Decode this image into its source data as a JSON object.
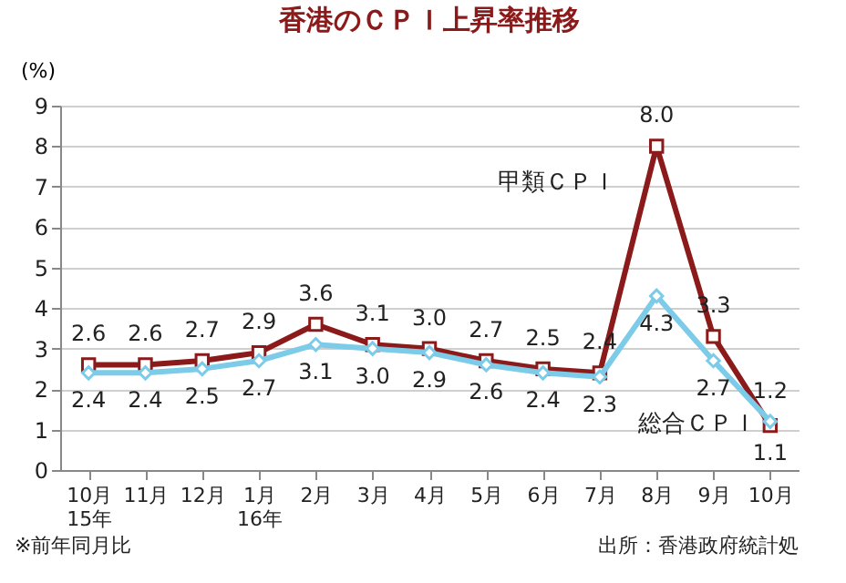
{
  "chart_data": {
    "type": "line",
    "title": "香港のＣＰＩ上昇率推移",
    "ylabel": "(%)",
    "categories": [
      "10月\n15年",
      "11月",
      "12月",
      "1月\n16年",
      "2月",
      "3月",
      "4月",
      "5月",
      "6月",
      "7月",
      "8月",
      "9月",
      "10月"
    ],
    "series": [
      {
        "name": "甲類ＣＰＩ",
        "color": "#8b1a1a",
        "marker": "square",
        "values": [
          2.6,
          2.6,
          2.7,
          2.9,
          3.6,
          3.1,
          3.0,
          2.7,
          2.5,
          2.4,
          8.0,
          3.3,
          1.1
        ],
        "value_labels": [
          "2.6",
          "2.6",
          "2.7",
          "2.9",
          "3.6",
          "3.1",
          "3.0",
          "2.7",
          "2.5",
          "2.4",
          "8.0",
          "3.3",
          "1.1"
        ]
      },
      {
        "name": "総合ＣＰＩ",
        "color": "#7ccbe8",
        "marker": "diamond",
        "values": [
          2.4,
          2.4,
          2.5,
          2.7,
          3.1,
          3.0,
          2.9,
          2.6,
          2.4,
          2.3,
          4.3,
          2.7,
          1.2
        ],
        "value_labels": [
          "2.4",
          "2.4",
          "2.5",
          "2.7",
          "3.1",
          "3.0",
          "2.9",
          "2.6",
          "2.4",
          "2.3",
          "4.3",
          "2.7",
          "1.2"
        ]
      }
    ],
    "ylim": [
      0,
      9
    ],
    "yticks": [
      0,
      1,
      2,
      3,
      4,
      5,
      6,
      7,
      8,
      9
    ],
    "grid": "y",
    "line_style": "solid",
    "annotations": [
      "※前年同月比",
      "出所：香港政府統計処"
    ]
  }
}
